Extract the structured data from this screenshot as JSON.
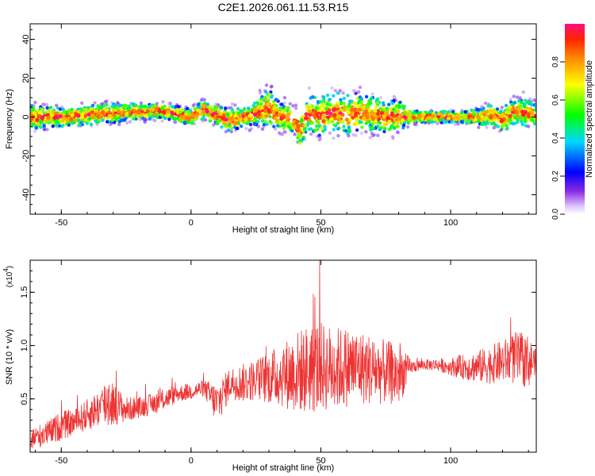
{
  "title": "C2E1.2026.061.11.53.R15",
  "chart_data": [
    {
      "type": "heatmap",
      "xlabel": "Height of straight line (km)",
      "ylabel": "Frequency (Hz)",
      "xlim": [
        -62,
        133
      ],
      "ylim": [
        -50,
        48
      ],
      "xticks": [
        -50,
        0,
        50,
        100
      ],
      "yticks": [
        -40,
        -20,
        0,
        20,
        40
      ],
      "colorbar": {
        "label": "Normalized spectral amplitude",
        "range": [
          0.0,
          1.0
        ],
        "ticks": [
          "0.0",
          "0.2",
          "0.4",
          "0.6",
          "0.8"
        ],
        "tick_values": [
          0.0,
          0.2,
          0.4,
          0.6,
          0.8
        ]
      },
      "ridge": {
        "x": [
          -62,
          -50,
          -40,
          -30,
          -20,
          -10,
          0,
          5,
          10,
          15,
          20,
          25,
          30,
          35,
          40,
          42,
          45,
          50,
          55,
          60,
          65,
          70,
          75,
          80,
          85,
          90,
          95,
          100,
          105,
          110,
          115,
          120,
          125,
          133
        ],
        "freq": [
          0,
          0,
          1,
          2,
          3,
          3,
          0,
          4,
          1,
          -2,
          0,
          2,
          5,
          0,
          -2,
          -8,
          2,
          0,
          3,
          1,
          3,
          2,
          0,
          1,
          0,
          0,
          0,
          0,
          0,
          0,
          1,
          -1,
          3,
          1
        ],
        "spread": [
          6,
          5,
          5,
          5,
          4,
          4,
          4,
          5,
          5,
          6,
          5,
          6,
          10,
          7,
          7,
          9,
          9,
          10,
          10,
          10,
          10,
          9,
          8,
          8,
          3,
          3,
          3,
          3,
          3,
          4,
          5,
          6,
          7,
          6
        ]
      }
    },
    {
      "type": "line",
      "xlabel": "Height of straight line (km)",
      "ylabel": "SNR (10 * v/v)",
      "y_multiplier": "(x10",
      "y_multiplier_exp": "4",
      "y_multiplier_close": ")",
      "xlim": [
        -62,
        133
      ],
      "ylim": [
        0,
        1.8
      ],
      "xticks": [
        -50,
        0,
        50,
        100
      ],
      "yticks": [
        0.5,
        1.0,
        1.5
      ],
      "ytick_labels": [
        "0.5",
        "1.0",
        "1.5"
      ],
      "color": "#ee3333",
      "series": [
        {
          "x": [
            -62,
            -55,
            -50,
            -45,
            -40,
            -35,
            -31,
            -30,
            -25,
            -20,
            -15,
            -10,
            -5,
            0,
            5,
            10,
            15,
            20,
            25,
            30,
            35,
            40,
            45,
            48,
            50,
            55,
            60,
            65,
            70,
            75,
            80,
            85,
            90,
            95,
            100,
            105,
            110,
            115,
            120,
            125,
            130,
            133
          ],
          "mean": [
            0.12,
            0.18,
            0.25,
            0.28,
            0.35,
            0.42,
            0.5,
            0.45,
            0.4,
            0.42,
            0.45,
            0.5,
            0.55,
            0.57,
            0.6,
            0.45,
            0.65,
            0.65,
            0.68,
            0.7,
            0.72,
            0.75,
            0.78,
            0.8,
            0.8,
            0.78,
            0.8,
            0.8,
            0.77,
            0.75,
            0.72,
            0.8,
            0.82,
            0.82,
            0.8,
            0.8,
            0.8,
            0.82,
            0.85,
            0.88,
            0.85,
            0.85
          ],
          "noise": [
            0.1,
            0.12,
            0.14,
            0.12,
            0.15,
            0.18,
            0.3,
            0.2,
            0.12,
            0.1,
            0.1,
            0.1,
            0.08,
            0.08,
            0.08,
            0.2,
            0.15,
            0.18,
            0.2,
            0.25,
            0.3,
            0.38,
            0.42,
            0.45,
            0.42,
            0.4,
            0.38,
            0.35,
            0.33,
            0.3,
            0.3,
            0.06,
            0.05,
            0.06,
            0.08,
            0.12,
            0.15,
            0.18,
            0.2,
            0.25,
            0.25,
            0.1
          ]
        }
      ]
    }
  ]
}
